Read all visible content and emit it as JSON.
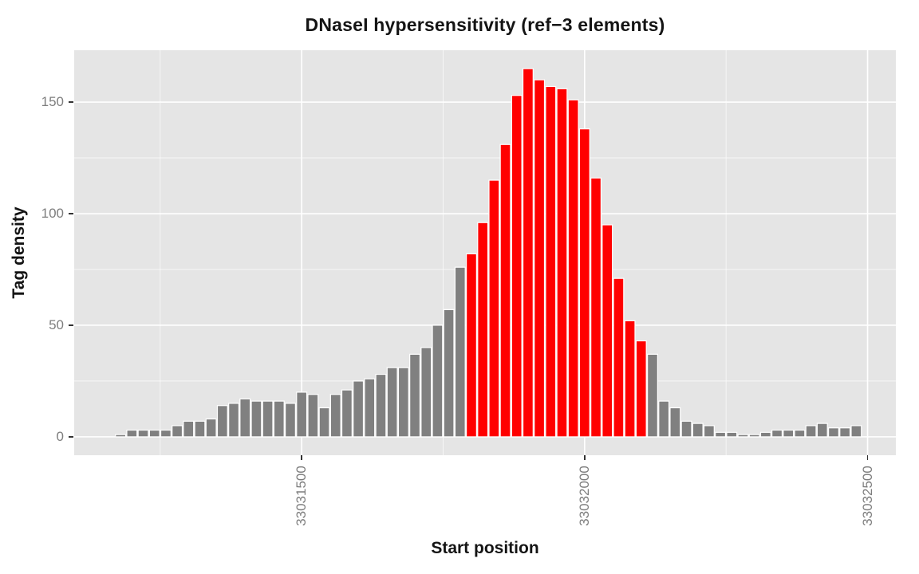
{
  "chart_data": {
    "type": "bar",
    "title": "DNaseI hypersensitivity (ref−3 elements)",
    "xlabel": "Start position",
    "ylabel": "Tag density",
    "x_ticks": [
      33031500,
      33032000,
      33032500
    ],
    "x_tick_labels": [
      "33031500",
      "33032000",
      "33032500"
    ],
    "x_minor_ticks": [
      33031250,
      33031750,
      33032250
    ],
    "y_ticks": [
      0,
      50,
      100,
      150
    ],
    "y_tick_labels": [
      "0",
      "50",
      "100",
      "150"
    ],
    "y_minor_ticks": [
      25,
      75,
      125
    ],
    "xlim": [
      33031098,
      33032550
    ],
    "ylim": [
      -8.25,
      173.25
    ],
    "bin_width": 20,
    "bar_color": "#808080",
    "highlight_color": "#FF0000",
    "highlight_x_range": [
      33031790,
      33032110
    ],
    "panel_bg": "#E5E5E5",
    "grid_color": "#FFFFFF",
    "tick_label_color": "#7e7e7e",
    "x": [
      33031180,
      33031200,
      33031220,
      33031240,
      33031260,
      33031280,
      33031300,
      33031320,
      33031340,
      33031360,
      33031380,
      33031400,
      33031420,
      33031440,
      33031460,
      33031480,
      33031500,
      33031520,
      33031540,
      33031560,
      33031580,
      33031600,
      33031620,
      33031640,
      33031660,
      33031680,
      33031700,
      33031720,
      33031740,
      33031760,
      33031780,
      33031800,
      33031820,
      33031840,
      33031860,
      33031880,
      33031900,
      33031920,
      33031940,
      33031960,
      33031980,
      33032000,
      33032020,
      33032040,
      33032060,
      33032080,
      33032100,
      33032120,
      33032140,
      33032160,
      33032180,
      33032200,
      33032220,
      33032240,
      33032260,
      33032280,
      33032300,
      33032320,
      33032340,
      33032360,
      33032380,
      33032400,
      33032420,
      33032440,
      33032460,
      33032480
    ],
    "values": [
      1,
      3,
      3,
      3,
      3,
      5,
      7,
      7,
      8,
      14,
      15,
      17,
      16,
      16,
      16,
      15,
      20,
      19,
      13,
      19,
      21,
      25,
      26,
      28,
      31,
      31,
      37,
      40,
      50,
      57,
      76,
      82,
      96,
      115,
      131,
      153,
      165,
      160,
      157,
      156,
      151,
      138,
      116,
      95,
      71,
      52,
      43,
      37,
      16,
      13,
      7,
      6,
      5,
      2,
      2,
      1,
      1,
      2,
      3,
      3,
      3,
      5,
      6,
      4,
      4,
      5
    ]
  }
}
